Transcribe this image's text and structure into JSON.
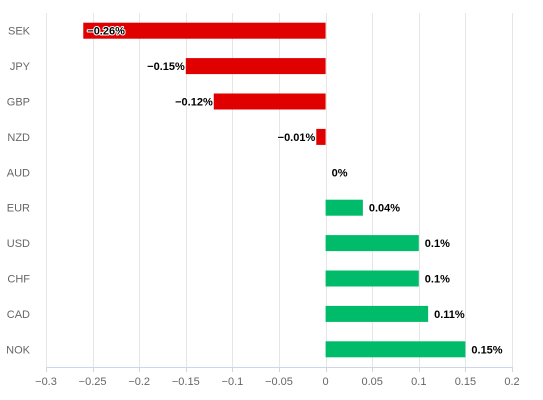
{
  "chart_data": {
    "type": "bar",
    "orientation": "horizontal",
    "title": "",
    "xlabel": "",
    "ylabel": "",
    "categories": [
      "SEK",
      "JPY",
      "GBP",
      "NZD",
      "AUD",
      "EUR",
      "USD",
      "CHF",
      "CAD",
      "NOK"
    ],
    "values": [
      -0.26,
      -0.15,
      -0.12,
      -0.01,
      0,
      0.04,
      0.1,
      0.1,
      0.11,
      0.15
    ],
    "data_labels": [
      "−0.26%",
      "−0.15%",
      "−0.12%",
      "−0.01%",
      "0%",
      "0.04%",
      "0.1%",
      "0.1%",
      "0.11%",
      "0.15%"
    ],
    "xlim": [
      -0.3,
      0.2
    ],
    "x_ticks": [
      -0.3,
      -0.25,
      -0.2,
      -0.15,
      -0.1,
      -0.05,
      0,
      0.05,
      0.1,
      0.15,
      0.2
    ],
    "x_tick_labels": [
      "−0.3",
      "−0.25",
      "−0.2",
      "−0.15",
      "−0.1",
      "−0.05",
      "0",
      "0.05",
      "0.1",
      "0.15",
      "0.2"
    ],
    "grid": true,
    "legend": "none",
    "colors": {
      "negative": "#e00000",
      "positive": "#00bb6a"
    }
  }
}
